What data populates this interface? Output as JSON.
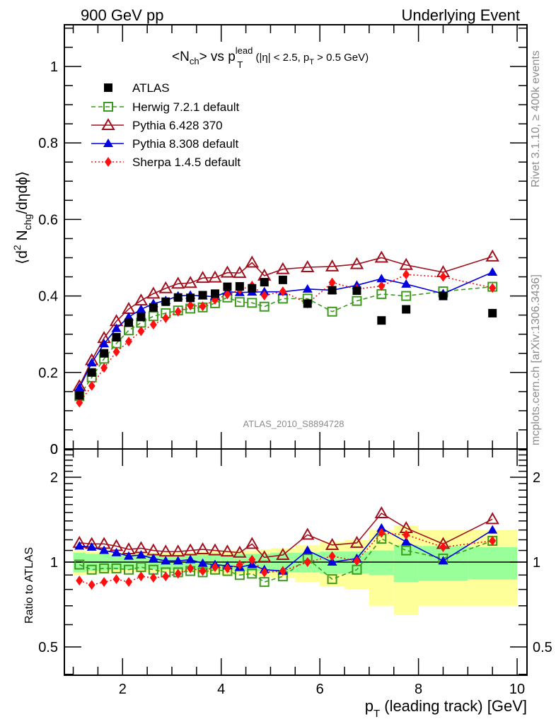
{
  "header": {
    "left": "900 GeV pp",
    "right": "Underlying Event"
  },
  "side_labels": {
    "rivet": "Rivet 3.1.10, ≥ 400k events",
    "mcplots": "mcplots.cern.ch [arXiv:1306.3436]"
  },
  "analysis_label": "ATLAS_2010_S8894728",
  "colors": {
    "atlas": "#000000",
    "herwig": "#3c9a1e",
    "pythia6": "#a0101e",
    "pythia8": "#0000e0",
    "sherpa": "#ff1010",
    "band_inner": "#99ff99",
    "band_outer": "#ffff99"
  },
  "chart_data": [
    {
      "type": "scatter",
      "panel": "main",
      "title_parts": {
        "pre": "<N",
        "sub1": "ch",
        "mid": "> vs p",
        "sup": "lead",
        "sub2": "T",
        "post_a": " (|η| < 2.5, p",
        "sub3": "T",
        "post_b": " > 0.5 GeV)"
      },
      "ylabel_parts": {
        "a": "⟨d",
        "sup": "2",
        "b": " N",
        "sub": "chg",
        "c": "/dηdϕ⟩"
      },
      "xlabel": "p_T (leading track) [GeV]",
      "ylim": [
        0,
        1.109
      ],
      "xlim": [
        0.82,
        10.2
      ],
      "yticks": [
        0,
        0.2,
        0.4,
        0.6,
        0.8,
        1
      ],
      "ytick_labels": [
        "0",
        "0.2",
        "0.4",
        "0.6",
        "0.8",
        "1"
      ],
      "legend_position": "top-left",
      "x": [
        1.125,
        1.375,
        1.625,
        1.875,
        2.125,
        2.375,
        2.625,
        2.875,
        3.125,
        3.375,
        3.625,
        3.875,
        4.125,
        4.375,
        4.625,
        4.875,
        5.25,
        5.75,
        6.25,
        6.75,
        7.25,
        7.75,
        8.5,
        9.5
      ],
      "series": [
        {
          "key": "atlas",
          "name": "ATLAS",
          "marker": "filled-square",
          "line": "none",
          "values": [
            0.14,
            0.2,
            0.25,
            0.292,
            0.33,
            0.345,
            0.37,
            0.385,
            0.396,
            0.395,
            0.402,
            0.406,
            0.424,
            0.425,
            0.42,
            0.436,
            0.442,
            0.38,
            0.415,
            0.414,
            0.336,
            0.365,
            0.4,
            0.355
          ]
        },
        {
          "key": "herwig",
          "name": "Herwig 7.2.1 default",
          "marker": "open-square",
          "line": "dashed",
          "values": [
            0.138,
            0.187,
            0.236,
            0.276,
            0.31,
            0.33,
            0.347,
            0.355,
            0.362,
            0.367,
            0.37,
            0.381,
            0.396,
            0.384,
            0.382,
            0.372,
            0.393,
            0.393,
            0.359,
            0.387,
            0.405,
            0.4,
            0.412,
            0.424
          ]
        },
        {
          "key": "pythia6",
          "name": "Pythia 6.428 370",
          "marker": "open-triangle",
          "line": "solid",
          "values": [
            0.164,
            0.232,
            0.29,
            0.334,
            0.366,
            0.388,
            0.406,
            0.42,
            0.432,
            0.434,
            0.447,
            0.448,
            0.461,
            0.46,
            0.487,
            0.453,
            0.47,
            0.475,
            0.477,
            0.483,
            0.5,
            0.481,
            0.462,
            0.503
          ]
        },
        {
          "key": "pythia8",
          "name": "Pythia 8.308 default",
          "marker": "filled-triangle",
          "line": "solid",
          "values": [
            0.16,
            0.225,
            0.275,
            0.315,
            0.345,
            0.365,
            0.38,
            0.388,
            0.4,
            0.402,
            0.4,
            0.398,
            0.411,
            0.409,
            0.41,
            0.411,
            0.411,
            0.418,
            0.415,
            0.428,
            0.445,
            0.431,
            0.406,
            0.462
          ]
        },
        {
          "key": "sherpa",
          "name": "Sherpa 1.4.5 default",
          "marker": "filled-diamond",
          "line": "dotted",
          "values": [
            0.121,
            0.165,
            0.212,
            0.254,
            0.281,
            0.308,
            0.325,
            0.342,
            0.359,
            0.375,
            0.373,
            0.39,
            0.404,
            0.416,
            0.427,
            0.401,
            0.412,
            0.38,
            0.435,
            0.418,
            0.426,
            0.456,
            0.45,
            0.421
          ]
        }
      ]
    },
    {
      "type": "scatter",
      "panel": "ratio",
      "ylabel": "Ratio to ATLAS",
      "yscale": "log",
      "ylim": [
        0.397,
        2.52
      ],
      "yticks": [
        0.5,
        1,
        2
      ],
      "ytick_labels": [
        "0.5",
        "1",
        "2"
      ],
      "xlim": [
        0.82,
        10.2
      ],
      "xticks": [
        2,
        4,
        6,
        8,
        10
      ],
      "xtick_labels": [
        "2",
        "4",
        "6",
        "8",
        "10"
      ],
      "x": [
        1.125,
        1.375,
        1.625,
        1.875,
        2.125,
        2.375,
        2.625,
        2.875,
        3.125,
        3.375,
        3.625,
        3.875,
        4.125,
        4.375,
        4.625,
        4.875,
        5.25,
        5.75,
        6.25,
        6.75,
        7.25,
        7.75,
        8.5,
        9.5
      ],
      "bin_edges": [
        1.0,
        1.25,
        1.5,
        1.75,
        2.0,
        2.25,
        2.5,
        2.75,
        3.0,
        3.25,
        3.5,
        3.75,
        4.0,
        4.25,
        4.5,
        4.75,
        5.0,
        5.5,
        6.0,
        6.5,
        7.0,
        7.5,
        8.0,
        9.0,
        10.0
      ],
      "band_inner": [
        0.08,
        0.07,
        0.07,
        0.06,
        0.06,
        0.06,
        0.06,
        0.06,
        0.06,
        0.06,
        0.06,
        0.06,
        0.06,
        0.07,
        0.07,
        0.07,
        0.08,
        0.08,
        0.09,
        0.09,
        0.1,
        0.15,
        0.14,
        0.13
      ],
      "band_outer": [
        0.1,
        0.09,
        0.09,
        0.08,
        0.08,
        0.08,
        0.08,
        0.08,
        0.08,
        0.08,
        0.09,
        0.09,
        0.1,
        0.1,
        0.1,
        0.11,
        0.12,
        0.15,
        0.18,
        0.2,
        0.3,
        0.35,
        0.3,
        0.3
      ],
      "series": [
        {
          "key": "herwig",
          "name": "Herwig 7.2.1 default",
          "values": [
            0.98,
            0.94,
            0.95,
            0.95,
            0.94,
            0.96,
            0.94,
            0.92,
            0.92,
            0.93,
            0.92,
            0.94,
            0.93,
            0.9,
            0.91,
            0.85,
            0.89,
            1.03,
            0.87,
            0.94,
            1.21,
            1.1,
            1.03,
            1.19
          ]
        },
        {
          "key": "pythia6",
          "name": "Pythia 6.428 370",
          "values": [
            1.17,
            1.16,
            1.16,
            1.14,
            1.11,
            1.12,
            1.1,
            1.09,
            1.09,
            1.1,
            1.11,
            1.1,
            1.09,
            1.08,
            1.16,
            1.04,
            1.06,
            1.25,
            1.15,
            1.17,
            1.49,
            1.32,
            1.16,
            1.42
          ]
        },
        {
          "key": "pythia8",
          "name": "Pythia 8.308 default",
          "values": [
            1.14,
            1.13,
            1.1,
            1.08,
            1.05,
            1.06,
            1.03,
            1.01,
            1.01,
            1.02,
            0.99,
            0.98,
            0.97,
            0.96,
            0.98,
            0.94,
            0.93,
            1.1,
            1.0,
            1.03,
            1.32,
            1.18,
            1.01,
            1.3
          ]
        },
        {
          "key": "sherpa",
          "name": "Sherpa 1.4.5 default",
          "values": [
            0.86,
            0.83,
            0.85,
            0.87,
            0.85,
            0.89,
            0.88,
            0.89,
            0.91,
            0.95,
            0.93,
            0.96,
            0.95,
            0.98,
            1.02,
            0.92,
            0.93,
            1.0,
            1.05,
            1.01,
            1.27,
            1.25,
            1.13,
            1.19
          ]
        }
      ]
    }
  ]
}
